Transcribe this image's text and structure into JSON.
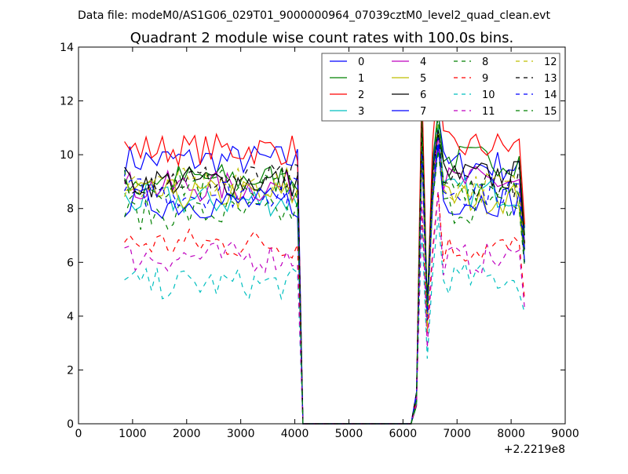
{
  "header": {
    "data_file": "Data file: modeM0/AS1G06_029T01_9000000964_07039cztM0_level2_quad_clean.evt"
  },
  "chart_data": {
    "type": "line",
    "title": "Quadrant 2 module wise count rates with 100.0s bins.",
    "xlabel": "",
    "ylabel": "",
    "x_offset_label": "+2.2219e8",
    "xlim": [
      0,
      9000
    ],
    "ylim": [
      0,
      14
    ],
    "xticks": [
      0,
      1000,
      2000,
      3000,
      4000,
      5000,
      6000,
      7000,
      8000,
      9000
    ],
    "yticks": [
      0,
      2,
      4,
      6,
      8,
      10,
      12,
      14
    ],
    "grid": false,
    "legend_position": "top-right",
    "legend_columns": 4,
    "series": [
      {
        "name": "0",
        "color": "#0000ff",
        "dash": "solid",
        "base": 9.8,
        "post": 9.6
      },
      {
        "name": "1",
        "color": "#008000",
        "dash": "solid",
        "base": 9.1,
        "post": 9.8
      },
      {
        "name": "2",
        "color": "#ff0000",
        "dash": "solid",
        "base": 10.2,
        "post": 10.3
      },
      {
        "name": "3",
        "color": "#00bfbf",
        "dash": "solid",
        "base": 8.3,
        "post": 8.6
      },
      {
        "name": "4",
        "color": "#bf00bf",
        "dash": "solid",
        "base": 8.8,
        "post": 9.0
      },
      {
        "name": "5",
        "color": "#bfbf00",
        "dash": "solid",
        "base": 8.5,
        "post": 8.4
      },
      {
        "name": "6",
        "color": "#000000",
        "dash": "solid",
        "base": 9.0,
        "post": 9.2
      },
      {
        "name": "7",
        "color": "#0000ff",
        "dash": "solid",
        "base": 8.2,
        "post": 8.3
      },
      {
        "name": "8",
        "color": "#008000",
        "dash": "dashed",
        "base": 7.8,
        "post": 8.0
      },
      {
        "name": "9",
        "color": "#ff0000",
        "dash": "dashed",
        "base": 6.7,
        "post": 6.5
      },
      {
        "name": "10",
        "color": "#00bfbf",
        "dash": "dashed",
        "base": 5.2,
        "post": 5.4
      },
      {
        "name": "11",
        "color": "#bf00bf",
        "dash": "dashed",
        "base": 6.2,
        "post": 6.1
      },
      {
        "name": "12",
        "color": "#bfbf00",
        "dash": "dashed",
        "base": 8.9,
        "post": 8.8
      },
      {
        "name": "13",
        "color": "#000000",
        "dash": "dashed",
        "base": 9.1,
        "post": 9.0
      },
      {
        "name": "14",
        "color": "#0000ff",
        "dash": "dashed",
        "base": 8.6,
        "post": 8.7
      },
      {
        "name": "15",
        "color": "#008000",
        "dash": "dashed",
        "base": 8.9,
        "post": 8.9
      }
    ],
    "segments": {
      "start": 850,
      "step": 100,
      "active1_end": 4050,
      "drop_end": 4150,
      "gap_end": 6150,
      "rise": 6250,
      "spike1": 6350,
      "dip": 6450,
      "spike2": 6650,
      "end": 8250
    }
  }
}
